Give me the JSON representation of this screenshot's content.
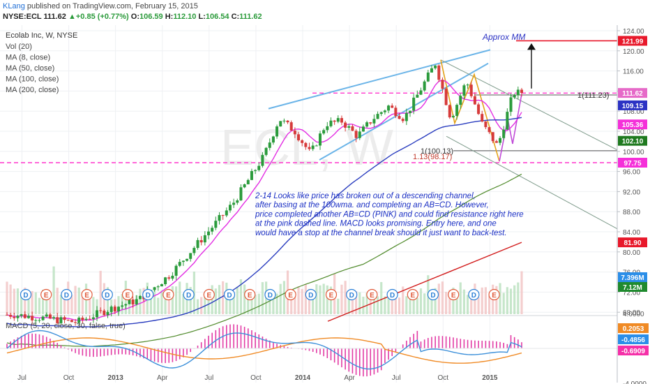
{
  "header": {
    "author": "KLang",
    "published_text": "published on TradingView.com, February 15, 2015",
    "symbol": "NYSE:ECL",
    "price": "111.62",
    "change_arrow": "▲",
    "change": "+0.85 (+0.77%)",
    "open_label": "O:",
    "open": "106.59",
    "high_label": "H:",
    "high": "112.10",
    "low_label": "L:",
    "low": "106.54",
    "close_label": "C:",
    "close": "111.62"
  },
  "legend": {
    "title": "Ecolab Inc, W, NYSE",
    "items": [
      "Vol (20)",
      "MA (8, close)",
      "MA (50, close)",
      "MA (100, close)",
      "MA (200, close)"
    ]
  },
  "watermark": "ECL, W",
  "macd_label": "MACD (5, 20, close, 30, false, true)",
  "colors": {
    "up": "#2b9b3c",
    "down": "#d63a3a",
    "ma8": "#e32ee3",
    "ma50": "#2a3dbf",
    "ma100": "#4f8a2a",
    "ma200": "#d21b1b",
    "channel": "#6ab4e8",
    "pink": "#ff33cc",
    "abcd": "#e4a21a",
    "macd_line": "#3b8fd9",
    "signal_line": "#f08a24",
    "hist": "#e23aa4"
  },
  "annotation_lines": [
    "2-14  Looks like price has broken out of a descending channel,",
    "after basing at the 100wma. and completing an AB=CD.  However,",
    "price completed another AB=CD (PINK) and could find resistance right here",
    "at the pink dashed line.  MACD looks promising.  Entry here, and one",
    "would have a stop at the channel break should it just want to back-test."
  ],
  "approx_mm_label": "Approx MM",
  "fib_labels": [
    "1(111.23)",
    "1(100.13)",
    "1.13(98.17)"
  ],
  "event_markers": [
    "D",
    "E",
    "D",
    "E",
    "D",
    "E",
    "D",
    "E",
    "D",
    "E",
    "D",
    "E",
    "D",
    "E",
    "D",
    "E",
    "D",
    "E",
    "D",
    "E",
    "D",
    "E",
    "D",
    "E"
  ],
  "price_badges": [
    {
      "text": "121.99",
      "bg": "#e8192b",
      "fg": "#ffffff",
      "value": 121.99
    },
    {
      "text": "111.62",
      "bg": "#e66ac8",
      "fg": "#ffffff",
      "value": 111.62
    },
    {
      "text": "109.15",
      "bg": "#2c33c4",
      "fg": "#ffffff",
      "value": 109.15
    },
    {
      "text": "105.36",
      "bg": "#f530d9",
      "fg": "#ffffff",
      "value": 105.36
    },
    {
      "text": "102.10",
      "bg": "#1f7a1f",
      "fg": "#ffffff",
      "value": 102.1
    },
    {
      "text": "97.75",
      "bg": "#f530d9",
      "fg": "#ffffff",
      "value": 97.75
    },
    {
      "text": "81.90",
      "bg": "#e8192b",
      "fg": "#ffffff",
      "value": 81.9
    }
  ],
  "volume_badges": [
    {
      "text": "7.396M",
      "bg": "#2b8ee8",
      "fg": "#ffffff"
    },
    {
      "text": "7.12M",
      "bg": "#1f8a2e",
      "fg": "#ffffff"
    }
  ],
  "macd_badges": [
    {
      "text": "0.2053",
      "bg": "#f08a24",
      "fg": "#ffffff"
    },
    {
      "text": "-0.4856",
      "bg": "#2b8ee8",
      "fg": "#ffffff"
    },
    {
      "text": "-0.6909",
      "bg": "#f530a8",
      "fg": "#ffffff"
    }
  ],
  "chart_data": {
    "type": "candlestick",
    "timeframe": "W",
    "price_axis": {
      "ticks": [
        124,
        120,
        116,
        112,
        108,
        104,
        100,
        96,
        92,
        88,
        84,
        80,
        76,
        72,
        68
      ],
      "tick_labels": [
        "124.00",
        "120.00",
        "116.00",
        "112.00",
        "108.00",
        "104.00",
        "100.00",
        "96.00",
        "92.00",
        "88.00",
        "84.00",
        "80.00",
        "76.00",
        "72.00",
        "68.00"
      ]
    },
    "macd_axis": {
      "ticks": [
        4,
        0,
        -4
      ],
      "tick_labels": [
        "4.0000",
        "0.0000",
        "-4.0000"
      ]
    },
    "x_labels": [
      "Jul",
      "Oct",
      "2013",
      "Apr",
      "Jul",
      "Oct",
      "2014",
      "Apr",
      "Jul",
      "Oct",
      "2015"
    ],
    "price_path": [
      [
        "2012-06",
        67.5
      ],
      [
        "2012-08",
        66.8
      ],
      [
        "2012-10",
        66.0
      ],
      [
        "2012-12",
        68.5
      ],
      [
        "2013-02",
        70.5
      ],
      [
        "2013-04",
        75.5
      ],
      [
        "2013-06",
        82.5
      ],
      [
        "2013-08",
        89.5
      ],
      [
        "2013-10",
        99.0
      ],
      [
        "2013-11",
        106.5
      ],
      [
        "2013-12",
        104.0
      ],
      [
        "2014-01",
        99.5
      ],
      [
        "2014-02",
        105.5
      ],
      [
        "2014-03",
        106.0
      ],
      [
        "2014-04",
        103.0
      ],
      [
        "2014-05",
        106.5
      ],
      [
        "2014-06",
        109.0
      ],
      [
        "2014-07",
        106.5
      ],
      [
        "2014-08",
        112.0
      ],
      [
        "2014-09",
        117.5
      ],
      [
        "2014-10",
        106.5
      ],
      [
        "2014-11",
        114.0
      ],
      [
        "2014-12",
        105.5
      ],
      [
        "2015-01",
        101.0
      ],
      [
        "2015-02",
        111.62
      ]
    ],
    "moving_averages": [
      {
        "name": "MA (8, close)",
        "last": 105.36
      },
      {
        "name": "MA (50, close)",
        "last": 109.15
      },
      {
        "name": "MA (100, close)",
        "last": 102.1
      },
      {
        "name": "MA (200, close)",
        "last": 81.9
      }
    ],
    "levels": [
      {
        "name": "Approx MM",
        "value": 121.99
      },
      {
        "name": "1(111.23)",
        "value": 111.23
      },
      {
        "name": "1(100.13)",
        "value": 100.13
      },
      {
        "name": "1.13(98.17)",
        "value": 98.17
      }
    ],
    "volume_last": [
      "7.396M",
      "7.12M"
    ],
    "macd_last": {
      "signal": 0.2053,
      "macd": -0.4856,
      "histogram": -0.6909
    }
  }
}
